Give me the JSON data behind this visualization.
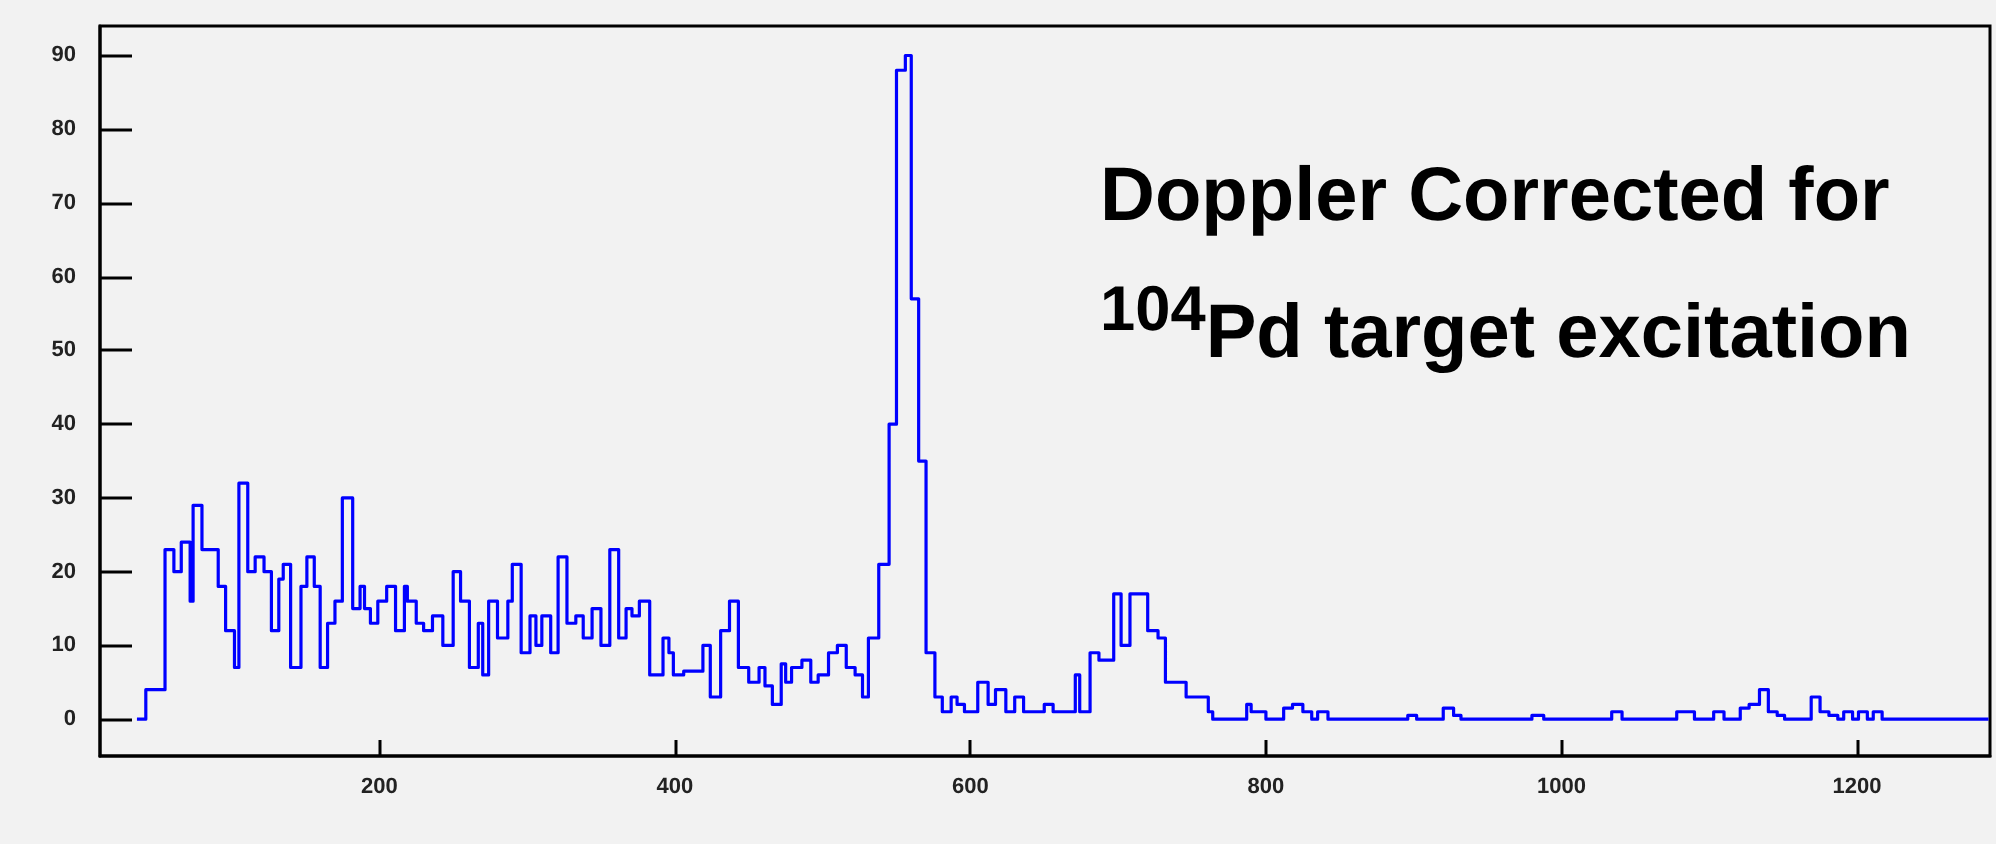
{
  "chart_data": {
    "type": "histogram",
    "color": "#0000ff",
    "bins": [
      36,
      42,
      49,
      55,
      61,
      66,
      72,
      74,
      80,
      85,
      91,
      96,
      102,
      105,
      111,
      116,
      122,
      127,
      132,
      135,
      140,
      147,
      151,
      156,
      160,
      165,
      170,
      175,
      182,
      187,
      190,
      194,
      199,
      205,
      211,
      217,
      219,
      225,
      230,
      236,
      243,
      250,
      255,
      261,
      267,
      270,
      274,
      280,
      287,
      290,
      296,
      302,
      306,
      310,
      316,
      321,
      327,
      333,
      338,
      344,
      350,
      356,
      362,
      367,
      371,
      376,
      383,
      387,
      392,
      396,
      399,
      406,
      412,
      419,
      424,
      431,
      437,
      443,
      450,
      457,
      461,
      466,
      472,
      475,
      479,
      486,
      492,
      497,
      504,
      510,
      516,
      522,
      527,
      531,
      538,
      545,
      550,
      556,
      560,
      565,
      570,
      576,
      581,
      587,
      591,
      596,
      605,
      612,
      617,
      624,
      630,
      636,
      643,
      650,
      656,
      663,
      671,
      674,
      681,
      687,
      692,
      697,
      702,
      708,
      715,
      720,
      727,
      732,
      739,
      746,
      753,
      761,
      764,
      787,
      790,
      800,
      812,
      818,
      825,
      831,
      835,
      842,
      896,
      902,
      920,
      927,
      932,
      980,
      988,
      1034,
      1041,
      1078,
      1090,
      1103,
      1110,
      1121,
      1127,
      1134,
      1140,
      1146,
      1151,
      1169,
      1175,
      1181,
      1187,
      1191,
      1197,
      1201,
      1207,
      1211,
      1217,
      1289
    ],
    "values": [
      0,
      4,
      4,
      23,
      20,
      24,
      16,
      29,
      23,
      23,
      18,
      12,
      7,
      32,
      20,
      22,
      20,
      12,
      19,
      21,
      7,
      18,
      22,
      18,
      7,
      13,
      16,
      30,
      15,
      18,
      15,
      13,
      16,
      18,
      12,
      18,
      16,
      13,
      12,
      14,
      10,
      20,
      16,
      7,
      13,
      6,
      16,
      11,
      16,
      21,
      9,
      14,
      10,
      14,
      9,
      22,
      13,
      14,
      11,
      15,
      10,
      23,
      11,
      15,
      14,
      16,
      6,
      6,
      11,
      9,
      6,
      6.5,
      6.5,
      10,
      3,
      12,
      16,
      7,
      5,
      7,
      4.5,
      2,
      7.5,
      5,
      7,
      8,
      5,
      6,
      9,
      10,
      7,
      6,
      3,
      11,
      21,
      40,
      88,
      90,
      57,
      35,
      9,
      3,
      1,
      3,
      2,
      1,
      5,
      2,
      4,
      1,
      3,
      1,
      1,
      2,
      1,
      1,
      6,
      1,
      9,
      8,
      8,
      17,
      10,
      17,
      17,
      12,
      11,
      5,
      5,
      3,
      3,
      1,
      0,
      2,
      1,
      0,
      1.5,
      2,
      1,
      0,
      1,
      0,
      0.5,
      0,
      1.5,
      0.5,
      0,
      0.5,
      0,
      1,
      0,
      1,
      0,
      1,
      0,
      1.5,
      2,
      4,
      1,
      0.5,
      0,
      3,
      1,
      0.5,
      0,
      1,
      0,
      1,
      0,
      1,
      0
    ],
    "xlim": [
      11,
      1290
    ],
    "ylim": [
      -5,
      94
    ],
    "xticks": [
      200,
      400,
      600,
      800,
      1000,
      1200
    ],
    "yticks": [
      0,
      10,
      20,
      30,
      40,
      50,
      60,
      70,
      80,
      90
    ],
    "annotations": [
      "Doppler Corrected for $^{104}$Pd target excitation"
    ]
  }
}
